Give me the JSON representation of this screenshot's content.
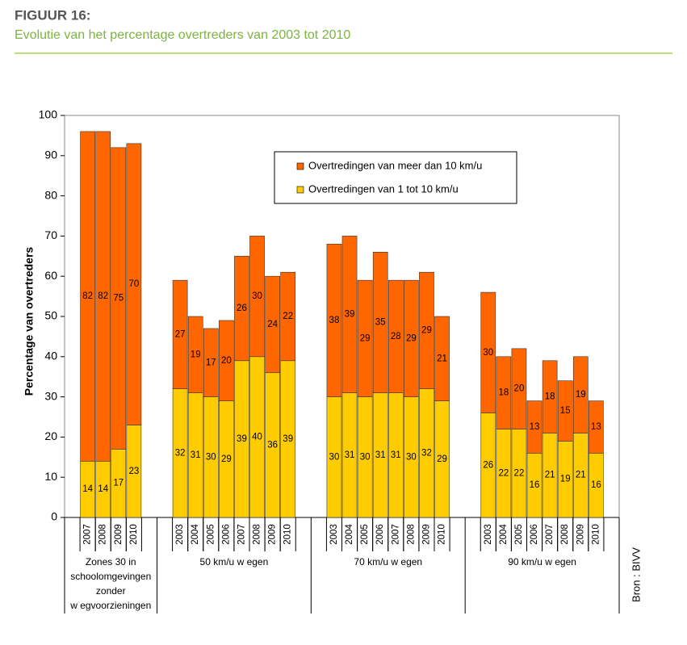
{
  "header": {
    "title": "FIGUUR 16:",
    "subtitle": "Evolutie van het percentage overtreders van 2003 tot 2010"
  },
  "chart_data": {
    "type": "bar",
    "stacked": true,
    "ylabel": "Percentage van overtreders",
    "source": "Bron : BIVV",
    "ylim": [
      0,
      100
    ],
    "yticks": [
      0,
      10,
      20,
      30,
      40,
      50,
      60,
      70,
      80,
      90,
      100
    ],
    "groups": [
      {
        "label": [
          "Zones 30 in",
          "schoolomgevingen",
          "zonder",
          "w egvoorzieningen"
        ],
        "categories": [
          "2007",
          "2008",
          "2009",
          "2010"
        ]
      },
      {
        "label": [
          "50 km/u w egen"
        ],
        "categories": [
          "2003",
          "2004",
          "2005",
          "2006",
          "2007",
          "2008",
          "2009",
          "2010"
        ]
      },
      {
        "label": [
          "70 km/u w egen"
        ],
        "categories": [
          "2003",
          "2004",
          "2005",
          "2006",
          "2007",
          "2008",
          "2009",
          "2010"
        ]
      },
      {
        "label": [
          "90 km/u w egen"
        ],
        "categories": [
          "2003",
          "2004",
          "2005",
          "2006",
          "2007",
          "2008",
          "2009",
          "2010"
        ]
      }
    ],
    "series": [
      {
        "name": "Overtredingen van 1 tot 10 km/u",
        "color": "#ffcc00",
        "values": [
          14,
          14,
          17,
          23,
          32,
          31,
          30,
          29,
          39,
          40,
          36,
          39,
          30,
          31,
          30,
          31,
          31,
          30,
          32,
          29,
          26,
          22,
          22,
          16,
          21,
          19,
          21,
          16
        ]
      },
      {
        "name": "Overtredingen van meer dan 10 km/u",
        "color": "#ff6600",
        "values": [
          82,
          82,
          75,
          70,
          27,
          19,
          17,
          20,
          26,
          30,
          24,
          22,
          38,
          39,
          29,
          35,
          28,
          29,
          29,
          21,
          30,
          18,
          20,
          13,
          18,
          15,
          19,
          13
        ]
      }
    ],
    "legend_order": [
      1,
      0
    ]
  }
}
